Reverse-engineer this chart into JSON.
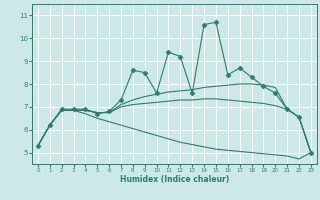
{
  "xlabel": "Humidex (Indice chaleur)",
  "ylabel": "",
  "bg_color": "#cce8e8",
  "grid_color": "#ffffff",
  "line_color": "#2d7d6e",
  "xlim": [
    -0.5,
    23.5
  ],
  "ylim": [
    4.5,
    11.5
  ],
  "xticks": [
    0,
    1,
    2,
    3,
    4,
    5,
    6,
    7,
    8,
    9,
    10,
    11,
    12,
    13,
    14,
    15,
    16,
    17,
    18,
    19,
    20,
    21,
    22,
    23
  ],
  "yticks": [
    5,
    6,
    7,
    8,
    9,
    10,
    11
  ],
  "lines": [
    {
      "x": [
        0,
        1,
        2,
        3,
        4,
        5,
        6,
        7,
        8,
        9,
        10,
        11,
        12,
        13,
        14,
        15,
        16,
        17,
        18,
        19,
        20,
        21,
        22,
        23
      ],
      "y": [
        5.3,
        6.2,
        6.9,
        6.9,
        6.9,
        6.7,
        6.8,
        7.3,
        8.6,
        8.5,
        7.6,
        9.4,
        9.2,
        7.6,
        10.6,
        10.7,
        8.4,
        8.7,
        8.3,
        7.9,
        7.6,
        6.9,
        6.55,
        5.0
      ],
      "marker": "D",
      "markersize": 2.5
    },
    {
      "x": [
        0,
        1,
        2,
        3,
        4,
        5,
        6,
        7,
        8,
        9,
        10,
        11,
        12,
        13,
        14,
        15,
        16,
        17,
        18,
        19,
        20,
        21,
        22,
        23
      ],
      "y": [
        5.3,
        6.2,
        6.85,
        6.85,
        6.85,
        6.75,
        6.75,
        7.1,
        7.3,
        7.45,
        7.55,
        7.65,
        7.7,
        7.75,
        7.85,
        7.9,
        7.95,
        8.0,
        8.0,
        7.95,
        7.85,
        6.9,
        6.55,
        5.0
      ],
      "marker": null,
      "markersize": 0
    },
    {
      "x": [
        0,
        1,
        2,
        3,
        4,
        5,
        6,
        7,
        8,
        9,
        10,
        11,
        12,
        13,
        14,
        15,
        16,
        17,
        18,
        19,
        20,
        21,
        22,
        23
      ],
      "y": [
        5.3,
        6.2,
        6.85,
        6.85,
        6.85,
        6.75,
        6.75,
        7.0,
        7.1,
        7.15,
        7.2,
        7.25,
        7.3,
        7.3,
        7.35,
        7.35,
        7.3,
        7.25,
        7.2,
        7.15,
        7.05,
        6.9,
        6.55,
        5.0
      ],
      "marker": null,
      "markersize": 0
    },
    {
      "x": [
        0,
        1,
        2,
        3,
        4,
        5,
        6,
        7,
        8,
        9,
        10,
        11,
        12,
        13,
        14,
        15,
        16,
        17,
        18,
        19,
        20,
        21,
        22,
        23
      ],
      "y": [
        5.3,
        6.2,
        6.85,
        6.85,
        6.7,
        6.5,
        6.35,
        6.2,
        6.05,
        5.9,
        5.75,
        5.6,
        5.45,
        5.35,
        5.25,
        5.15,
        5.1,
        5.05,
        5.0,
        4.95,
        4.9,
        4.85,
        4.72,
        5.0
      ],
      "marker": null,
      "markersize": 0
    }
  ]
}
